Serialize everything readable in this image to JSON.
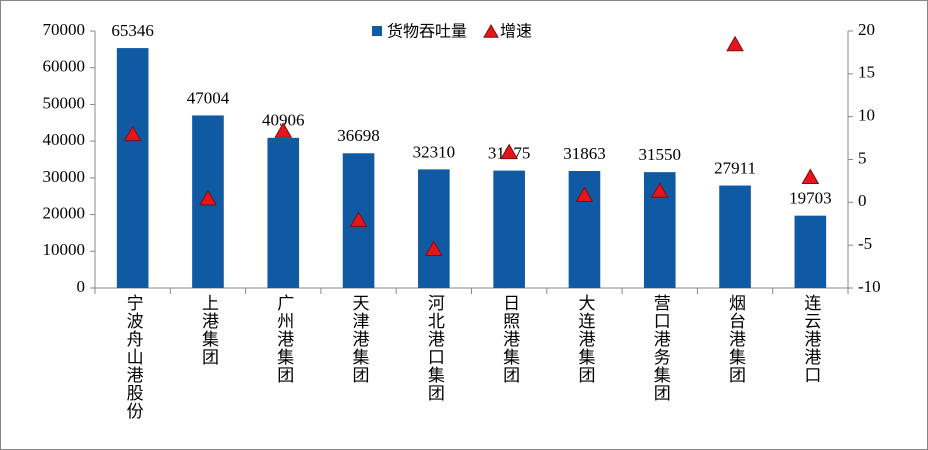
{
  "chart_data": {
    "type": "bar",
    "categories": [
      "宁波舟山港股份",
      "上港集团",
      "广州港集团",
      "天津港集团",
      "河北港口集团",
      "日照港集团",
      "大连港集团",
      "营口港务集团",
      "烟台港集团",
      "连云港港口"
    ],
    "series": [
      {
        "name": "货物吞吐量",
        "type": "bar",
        "color": "#0f5aa3",
        "values": [
          65346,
          47004,
          40906,
          36698,
          32310,
          31975,
          31863,
          31550,
          27911,
          19703
        ]
      },
      {
        "name": "增速",
        "type": "scatter",
        "marker": "triangle",
        "axis": "y2",
        "color": "#e8141b",
        "values": [
          7.9,
          0.4,
          8.3,
          -2.1,
          -5.5,
          5.8,
          0.8,
          1.3,
          18.4,
          2.9
        ]
      }
    ],
    "ylim": [
      0,
      70000
    ],
    "yticks": [
      0,
      10000,
      20000,
      30000,
      40000,
      50000,
      60000,
      70000
    ],
    "y2lim": [
      -10,
      20
    ],
    "y2ticks": [
      -10,
      -5,
      0,
      5,
      10,
      15,
      20
    ],
    "legend": "top",
    "grid": false
  }
}
